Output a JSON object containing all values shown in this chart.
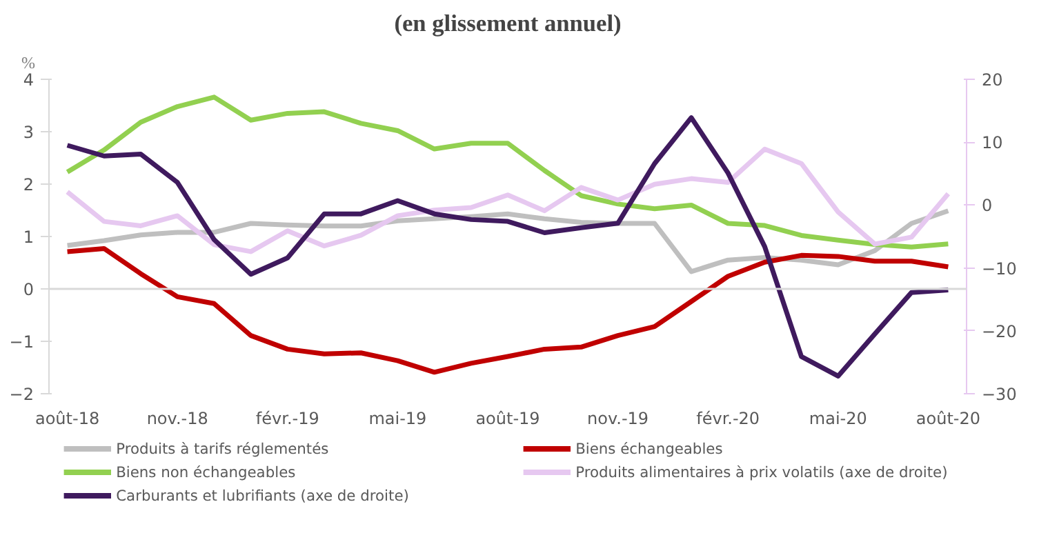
{
  "chart_data": {
    "type": "line",
    "title": "(en glissement annuel)",
    "ylabel": "%",
    "categories": [
      "août-18",
      null,
      null,
      "nov.-18",
      null,
      null,
      "févr.-19",
      null,
      null,
      "mai-19",
      null,
      null,
      "août-19",
      null,
      null,
      "nov.-19",
      null,
      null,
      "févr.-20",
      null,
      null,
      "mai-20",
      null,
      null,
      "août-20"
    ],
    "ylim": [
      -2,
      4
    ],
    "yticks": [
      -2,
      -1,
      0,
      1,
      2,
      3,
      4
    ],
    "y2lim": [
      -30,
      20
    ],
    "y2ticks": [
      -30,
      -20,
      -10,
      0,
      10,
      20
    ],
    "grid": false,
    "legend": "bottom",
    "line_style": "solid",
    "marker": "none",
    "ref_lines": [
      {
        "axis": "y",
        "value": 0,
        "color": "#d9d9d9"
      }
    ],
    "series": [
      {
        "name": "Produits à tarifs réglementés",
        "color": "#bfbfbf",
        "values": [
          0.83,
          0.92,
          1.03,
          1.08,
          1.08,
          1.25,
          1.22,
          1.2,
          1.2,
          1.3,
          1.34,
          1.38,
          1.43,
          1.34,
          1.27,
          1.25,
          1.25,
          0.33,
          0.55,
          0.6,
          0.55,
          0.46,
          0.73,
          1.25,
          1.49
        ]
      },
      {
        "name": "Biens échangeables",
        "color": "#c00000",
        "values": [
          0.71,
          0.77,
          0.29,
          -0.15,
          -0.28,
          -0.89,
          -1.15,
          -1.24,
          -1.22,
          -1.37,
          -1.59,
          -1.42,
          -1.29,
          -1.15,
          -1.11,
          -0.89,
          -0.72,
          -0.24,
          0.24,
          0.51,
          0.64,
          0.62,
          0.53,
          0.53,
          0.42
        ]
      },
      {
        "name": "Biens non échangeables",
        "color": "#92d050",
        "values": [
          2.23,
          2.65,
          3.18,
          3.48,
          3.66,
          3.22,
          3.35,
          3.38,
          3.16,
          3.02,
          2.67,
          2.78,
          2.78,
          2.26,
          1.78,
          1.62,
          1.53,
          1.6,
          1.25,
          1.21,
          1.02,
          0.93,
          0.85,
          0.8,
          0.86
        ]
      },
      {
        "name": "Produits alimentaires à prix volatils (axe de droite)",
        "color": "#e6c8f0",
        "axis": "y2",
        "values": [
          2.1,
          -2.6,
          -3.3,
          -1.7,
          -6.3,
          -7.4,
          -4.1,
          -6.5,
          -4.8,
          -1.7,
          -0.8,
          -0.4,
          1.6,
          -0.9,
          2.8,
          0.8,
          3.3,
          4.2,
          3.6,
          8.9,
          6.6,
          -1.1,
          -6.2,
          -5.1,
          1.8
        ]
      },
      {
        "name": "Carburants et lubrifiants (axe de droite)",
        "color": "#3f1a5e",
        "axis": "y2",
        "values": [
          9.5,
          7.8,
          8.1,
          3.6,
          -5.5,
          -11.0,
          -8.4,
          -1.4,
          -1.4,
          0.7,
          -1.4,
          -2.3,
          -2.6,
          -4.4,
          -3.6,
          -2.9,
          6.6,
          13.9,
          5.1,
          -6.6,
          -24.1,
          -27.2,
          -20.5,
          -13.9,
          -13.5
        ]
      }
    ]
  }
}
